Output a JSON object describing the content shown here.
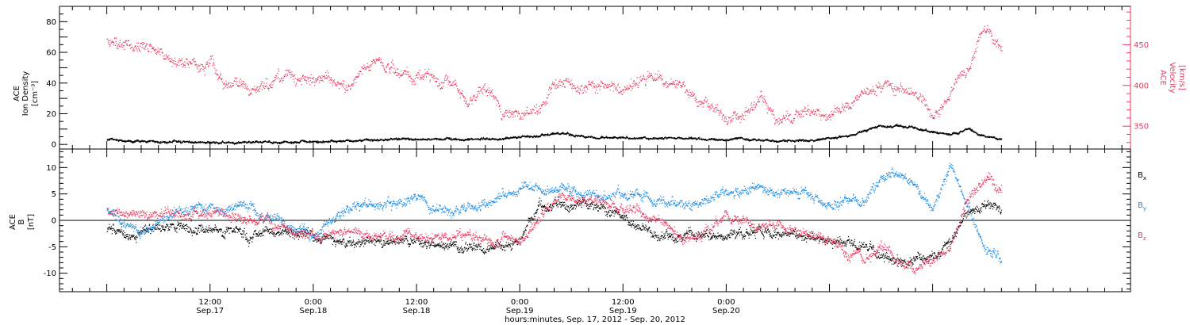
{
  "chart_data": [
    {
      "type": "scatter",
      "panel": "plasma",
      "ylabel_left": [
        "ACE",
        "Ion Density",
        "[cm⁻³]"
      ],
      "ylabel_right": [
        "ACE",
        "Velocity",
        "[km/s]"
      ],
      "ylim_left": [
        -3,
        90
      ],
      "ylim_right": [
        322,
        497
      ],
      "yticks_left": [
        0,
        20,
        40,
        60,
        80
      ],
      "yticks_right": [
        350,
        400,
        450
      ],
      "colors": {
        "density": "#000000",
        "velocity": "#e8385e"
      },
      "series": [
        {
          "axis": "left",
          "color": "#000000",
          "time_hours": [
            0,
            6,
            10,
            14,
            18,
            22,
            24,
            28,
            32,
            34,
            38,
            42,
            46,
            50,
            53,
            56,
            60,
            62,
            66,
            70,
            74,
            78,
            82,
            84,
            87,
            88,
            90,
            92,
            94,
            96,
            98,
            100,
            102,
            104
          ],
          "values": [
            3,
            1.5,
            1.5,
            1.2,
            1.5,
            1.5,
            1.5,
            2.2,
            3,
            3.5,
            3.5,
            3,
            4,
            5.5,
            7,
            4,
            4.5,
            3.5,
            4.5,
            3,
            3.5,
            2.5,
            2.5,
            4,
            6,
            9,
            12,
            12,
            11,
            8,
            6,
            10,
            5,
            3
          ]
        },
        {
          "axis": "right",
          "color": "#e8385e",
          "time_hours": [
            0,
            2,
            4,
            6,
            8,
            10,
            12,
            14,
            16,
            18,
            20,
            22,
            24,
            26,
            28,
            30,
            32,
            34,
            36,
            38,
            40,
            42,
            44,
            46,
            48,
            50,
            52,
            54,
            56,
            58,
            60,
            62,
            64,
            66,
            68,
            70,
            72,
            74,
            76,
            78,
            80,
            82,
            84,
            86,
            88,
            90,
            92,
            94,
            96,
            98,
            100,
            102,
            104
          ],
          "values": [
            455,
            450,
            445,
            438,
            432,
            420,
            428,
            405,
            395,
            400,
            405,
            410,
            408,
            405,
            402,
            420,
            425,
            420,
            410,
            405,
            402,
            380,
            395,
            365,
            362,
            370,
            400,
            405,
            398,
            402,
            395,
            400,
            415,
            400,
            385,
            375,
            360,
            365,
            380,
            355,
            360,
            365,
            362,
            372,
            395,
            400,
            405,
            395,
            358,
            395,
            420,
            470,
            440
          ]
        }
      ]
    },
    {
      "type": "scatter",
      "panel": "magnetic-field",
      "ylabel_left": [
        "ACE",
        "B",
        "[nT]"
      ],
      "ylim": [
        -13.5,
        13.5
      ],
      "yticks": [
        -10,
        -5,
        0,
        5,
        10
      ],
      "zero_line": true,
      "legend": "right",
      "colors": {
        "bx": "#000000",
        "by": "#1c8ce6",
        "bz": "#e8385e"
      },
      "series": [
        {
          "name_main": "B",
          "name_sub": "x",
          "color": "#000000",
          "time_hours": [
            0,
            4,
            8,
            12,
            16,
            20,
            24,
            28,
            32,
            36,
            40,
            44,
            46,
            48,
            50,
            52,
            56,
            60,
            64,
            68,
            72,
            76,
            80,
            84,
            88,
            92,
            96,
            98,
            100,
            102,
            104
          ],
          "values": [
            -2,
            -2,
            -1.5,
            -2,
            -2,
            -3,
            -3,
            -4,
            -4,
            -4,
            -4.5,
            -5,
            -5,
            -4,
            2,
            3,
            3,
            1,
            -3,
            -3,
            -3,
            -2,
            -3,
            -4,
            -5,
            -8,
            -7,
            -4,
            2,
            3,
            2
          ]
        },
        {
          "name_main": "B",
          "name_sub": "y",
          "color": "#1c8ce6",
          "time_hours": [
            0,
            4,
            8,
            12,
            16,
            20,
            24,
            28,
            32,
            36,
            40,
            44,
            48,
            52,
            56,
            60,
            64,
            68,
            72,
            76,
            80,
            84,
            86,
            88,
            90,
            92,
            94,
            96,
            98,
            100,
            102,
            104
          ],
          "values": [
            2,
            -2,
            2,
            2,
            2,
            0,
            -3,
            2,
            3,
            4,
            2,
            3,
            6,
            6,
            5,
            5,
            4,
            3,
            5,
            6,
            5,
            3,
            4,
            3,
            8,
            9,
            6,
            2,
            10,
            3,
            -5,
            -8
          ]
        },
        {
          "name_main": "B",
          "name_sub": "z",
          "color": "#e8385e",
          "time_hours": [
            0,
            4,
            8,
            12,
            16,
            20,
            24,
            28,
            32,
            36,
            40,
            44,
            48,
            52,
            56,
            60,
            64,
            68,
            72,
            76,
            80,
            84,
            86,
            88,
            90,
            92,
            94,
            96,
            98,
            100,
            102,
            104
          ],
          "values": [
            2,
            1,
            1,
            1,
            0.5,
            -1,
            -3,
            -2,
            -3,
            -3,
            -3,
            -3,
            -4,
            4,
            4,
            2,
            0,
            -4,
            1,
            -1,
            -2,
            -4,
            -6,
            -7,
            -5,
            -8,
            -9,
            -7,
            -6,
            4,
            8,
            6
          ]
        }
      ]
    }
  ],
  "xaxis": {
    "range_hours": [
      -5.5,
      119
    ],
    "ticks": [
      {
        "time_hours": 0,
        "line1": "",
        "line2": ""
      },
      {
        "time_hours": 12,
        "line1": "12:00",
        "line2": "Sep.17"
      },
      {
        "time_hours": 24,
        "line1": "0:00",
        "line2": "Sep.18"
      },
      {
        "time_hours": 36,
        "line1": "12:00",
        "line2": "Sep.18"
      },
      {
        "time_hours": 48,
        "line1": "0:00",
        "line2": "Sep.19"
      },
      {
        "time_hours": 60,
        "line1": "12:00",
        "line2": "Sep.19"
      },
      {
        "time_hours": 72,
        "line1": "0:00",
        "line2": "Sep.20"
      }
    ],
    "tick_offset_hours": 0,
    "title": "hours:minutes, Sep. 17, 2012 - Sep. 20, 2012"
  }
}
